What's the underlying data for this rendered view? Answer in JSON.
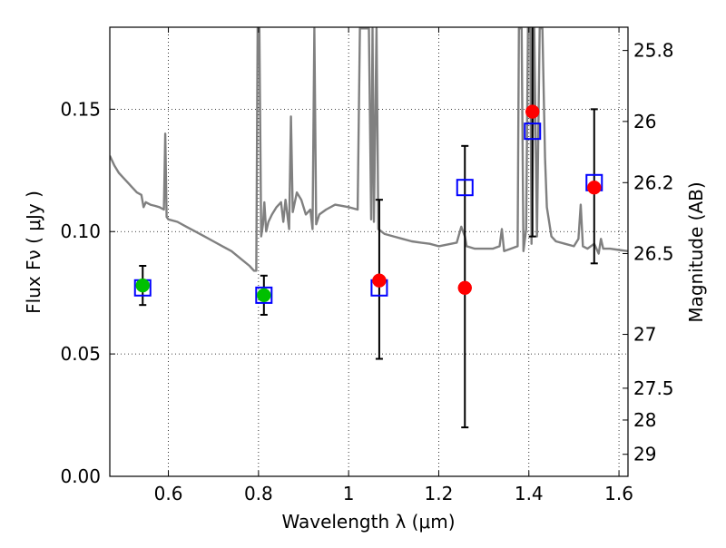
{
  "chart_data": {
    "type": "scatter",
    "title": "",
    "xlabel": "Wavelength  λ (μm)",
    "ylabel": "Flux  Fν  ( μJy )",
    "y2label": "Magnitude (AB)",
    "xlim": [
      0.47,
      1.62
    ],
    "ylim": [
      0.0,
      0.1835
    ],
    "x_ticks": [
      0.6,
      0.8,
      1.0,
      1.2,
      1.4,
      1.6
    ],
    "x_tick_labels": [
      "0.6",
      "0.8",
      "1",
      "1.2",
      "1.4",
      "1.6"
    ],
    "y_ticks": [
      0.0,
      0.05,
      0.1,
      0.15
    ],
    "y_tick_labels": [
      "0.00",
      "0.05",
      "0.10",
      "0.15"
    ],
    "y2_ticks": [
      {
        "label": "25.8",
        "flux": 0.174
      },
      {
        "label": "26",
        "flux": 0.145
      },
      {
        "label": "26.2",
        "flux": 0.12
      },
      {
        "label": "26.5",
        "flux": 0.091
      },
      {
        "label": "27",
        "flux": 0.058
      },
      {
        "label": "27.5",
        "flux": 0.036
      },
      {
        "label": "28",
        "flux": 0.023
      },
      {
        "label": "29",
        "flux": 0.009
      }
    ],
    "grid": true,
    "colors": {
      "model": "#808080",
      "observed_hst": "#00c000",
      "observed_ir": "#ff0000",
      "model_photometry": "#0000ff",
      "errorbar": "#000000"
    },
    "series": [
      {
        "type": "line",
        "points": [
          [
            0.47,
            0.131
          ],
          [
            0.48,
            0.127
          ],
          [
            0.49,
            0.124
          ],
          [
            0.5,
            0.122
          ],
          [
            0.51,
            0.12
          ],
          [
            0.52,
            0.118
          ],
          [
            0.53,
            0.116
          ],
          [
            0.535,
            0.1155
          ],
          [
            0.54,
            0.115
          ],
          [
            0.545,
            0.11
          ],
          [
            0.55,
            0.112
          ],
          [
            0.56,
            0.111
          ],
          [
            0.57,
            0.1105
          ],
          [
            0.58,
            0.11
          ],
          [
            0.59,
            0.109
          ],
          [
            0.593,
            0.14
          ],
          [
            0.596,
            0.106
          ],
          [
            0.6,
            0.105
          ],
          [
            0.62,
            0.104
          ],
          [
            0.64,
            0.102
          ],
          [
            0.66,
            0.1
          ],
          [
            0.68,
            0.098
          ],
          [
            0.7,
            0.096
          ],
          [
            0.72,
            0.094
          ],
          [
            0.74,
            0.092
          ],
          [
            0.76,
            0.089
          ],
          [
            0.78,
            0.086
          ],
          [
            0.79,
            0.084
          ],
          [
            0.795,
            0.084
          ],
          [
            0.798,
            0.183
          ],
          [
            0.802,
            0.183
          ],
          [
            0.806,
            0.098
          ],
          [
            0.81,
            0.103
          ],
          [
            0.813,
            0.112
          ],
          [
            0.817,
            0.1
          ],
          [
            0.822,
            0.104
          ],
          [
            0.83,
            0.107
          ],
          [
            0.84,
            0.11
          ],
          [
            0.85,
            0.112
          ],
          [
            0.855,
            0.104
          ],
          [
            0.86,
            0.113
          ],
          [
            0.868,
            0.101
          ],
          [
            0.872,
            0.147
          ],
          [
            0.876,
            0.108
          ],
          [
            0.885,
            0.116
          ],
          [
            0.895,
            0.113
          ],
          [
            0.905,
            0.107
          ],
          [
            0.915,
            0.109
          ],
          [
            0.92,
            0.101
          ],
          [
            0.924,
            0.183
          ],
          [
            0.928,
            0.103
          ],
          [
            0.935,
            0.107
          ],
          [
            0.95,
            0.109
          ],
          [
            0.97,
            0.111
          ],
          [
            1.0,
            0.11
          ],
          [
            1.02,
            0.109
          ],
          [
            1.025,
            0.183
          ],
          [
            1.045,
            0.183
          ],
          [
            1.05,
            0.105
          ],
          [
            1.053,
            0.183
          ],
          [
            1.056,
            0.104
          ],
          [
            1.062,
            0.183
          ],
          [
            1.066,
            0.101
          ],
          [
            1.08,
            0.099
          ],
          [
            1.1,
            0.098
          ],
          [
            1.12,
            0.097
          ],
          [
            1.14,
            0.096
          ],
          [
            1.16,
            0.0955
          ],
          [
            1.18,
            0.095
          ],
          [
            1.2,
            0.094
          ],
          [
            1.24,
            0.0955
          ],
          [
            1.25,
            0.102
          ],
          [
            1.258,
            0.098
          ],
          [
            1.262,
            0.094
          ],
          [
            1.28,
            0.093
          ],
          [
            1.3,
            0.093
          ],
          [
            1.32,
            0.093
          ],
          [
            1.335,
            0.094
          ],
          [
            1.34,
            0.101
          ],
          [
            1.345,
            0.092
          ],
          [
            1.36,
            0.093
          ],
          [
            1.375,
            0.094
          ],
          [
            1.378,
            0.183
          ],
          [
            1.384,
            0.183
          ],
          [
            1.388,
            0.092
          ],
          [
            1.394,
            0.101
          ],
          [
            1.398,
            0.183
          ],
          [
            1.403,
            0.183
          ],
          [
            1.406,
            0.095
          ],
          [
            1.412,
            0.183
          ],
          [
            1.418,
            0.098
          ],
          [
            1.424,
            0.183
          ],
          [
            1.43,
            0.183
          ],
          [
            1.436,
            0.13
          ],
          [
            1.44,
            0.11
          ],
          [
            1.45,
            0.098
          ],
          [
            1.46,
            0.096
          ],
          [
            1.48,
            0.095
          ],
          [
            1.5,
            0.094
          ],
          [
            1.51,
            0.097
          ],
          [
            1.515,
            0.111
          ],
          [
            1.52,
            0.094
          ],
          [
            1.53,
            0.093
          ],
          [
            1.545,
            0.095
          ],
          [
            1.555,
            0.091
          ],
          [
            1.56,
            0.097
          ],
          [
            1.565,
            0.093
          ],
          [
            1.58,
            0.093
          ],
          [
            1.6,
            0.0925
          ],
          [
            1.62,
            0.092
          ]
        ]
      },
      {
        "type": "errorbar",
        "x": [
          0.543,
          0.812,
          1.068,
          1.258,
          1.408,
          1.545
        ],
        "y": [
          0.078,
          0.074,
          0.08,
          0.077,
          0.149,
          0.118
        ],
        "yerr_low": [
          0.07,
          0.066,
          0.048,
          0.02,
          0.098,
          0.087
        ],
        "yerr_high": [
          0.086,
          0.082,
          0.113,
          0.135,
          0.185,
          0.15
        ]
      },
      {
        "type": "scatter",
        "marker": "open-square",
        "x": [
          0.543,
          0.812,
          1.068,
          1.258,
          1.408,
          1.545
        ],
        "y": [
          0.077,
          0.074,
          0.077,
          0.118,
          0.141,
          0.12
        ]
      },
      {
        "type": "scatter",
        "marker": "filled-circle",
        "x": [
          0.543,
          0.812
        ],
        "y": [
          0.078,
          0.074
        ]
      },
      {
        "type": "scatter",
        "marker": "filled-circle",
        "x": [
          1.068,
          1.258,
          1.408,
          1.545
        ],
        "y": [
          0.08,
          0.077,
          0.149,
          0.118
        ]
      }
    ]
  }
}
